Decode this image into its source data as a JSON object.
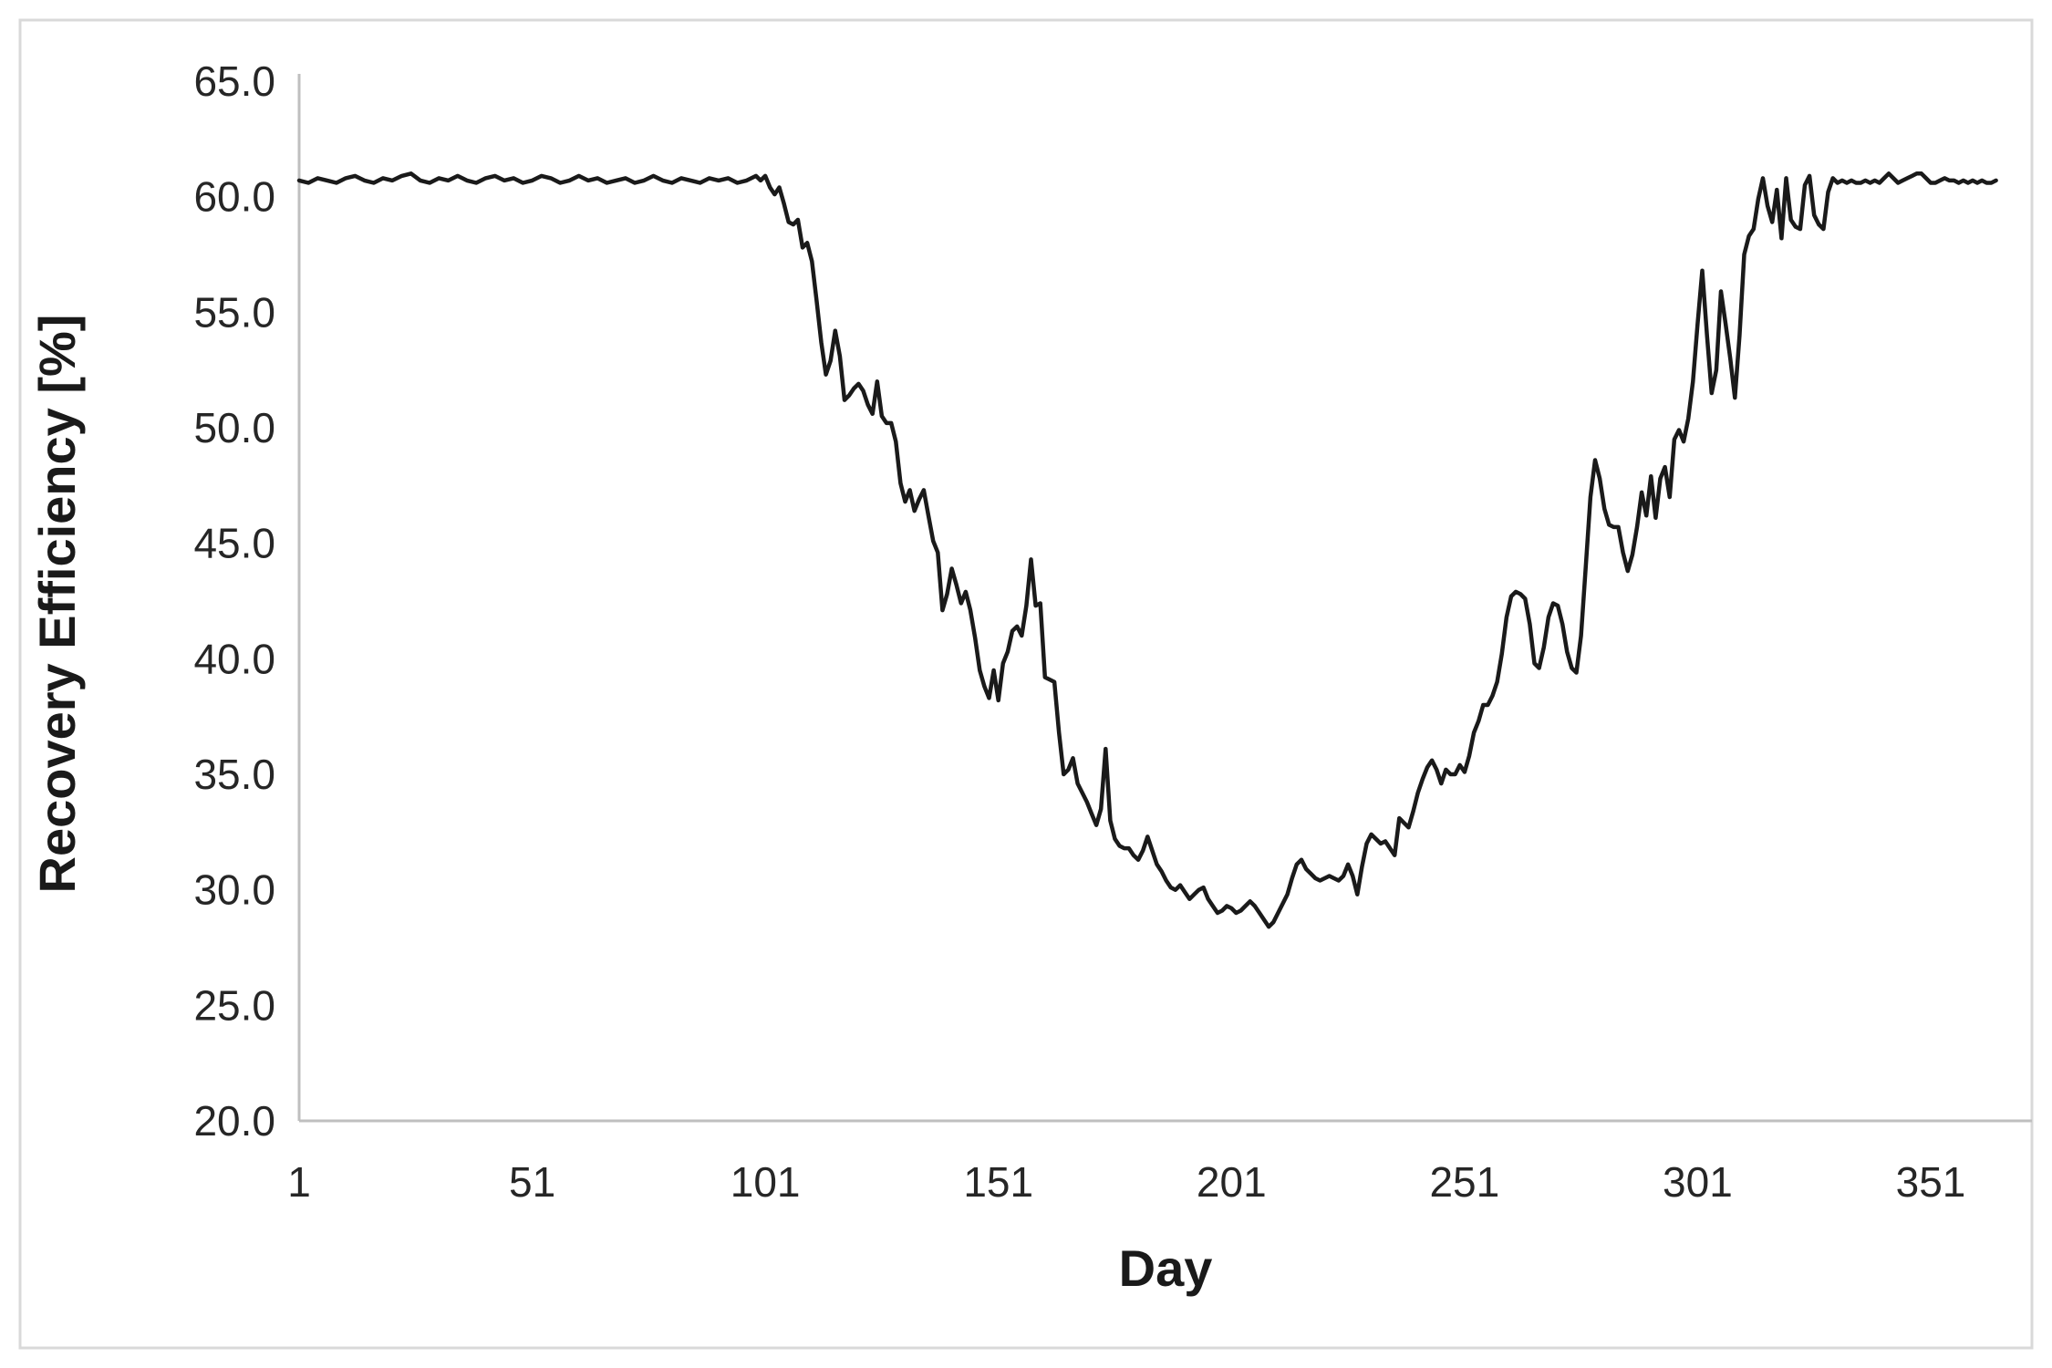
{
  "chart_data": {
    "type": "line",
    "title": "",
    "xlabel": "Day",
    "ylabel": "Recovery Efficiency [%]",
    "xlim": [
      1,
      373
    ],
    "ylim": [
      20.0,
      65.0
    ],
    "grid": false,
    "legend_position": "none",
    "x_ticks": [
      "1",
      "51",
      "101",
      "151",
      "201",
      "251",
      "301",
      "351"
    ],
    "y_ticks": [
      "65.0",
      "60.0",
      "55.0",
      "50.0",
      "45.0",
      "40.0",
      "35.0",
      "30.0",
      "25.0",
      "20.0"
    ],
    "series": [
      {
        "name": "Recovery Efficiency",
        "color": "#1a1a1a",
        "points": [
          [
            1,
            60.7
          ],
          [
            3,
            60.6
          ],
          [
            5,
            60.8
          ],
          [
            7,
            60.7
          ],
          [
            9,
            60.6
          ],
          [
            11,
            60.8
          ],
          [
            13,
            60.9
          ],
          [
            15,
            60.7
          ],
          [
            17,
            60.6
          ],
          [
            19,
            60.8
          ],
          [
            21,
            60.7
          ],
          [
            23,
            60.9
          ],
          [
            25,
            61.0
          ],
          [
            27,
            60.7
          ],
          [
            29,
            60.6
          ],
          [
            31,
            60.8
          ],
          [
            33,
            60.7
          ],
          [
            35,
            60.9
          ],
          [
            37,
            60.7
          ],
          [
            39,
            60.6
          ],
          [
            41,
            60.8
          ],
          [
            43,
            60.9
          ],
          [
            45,
            60.7
          ],
          [
            47,
            60.8
          ],
          [
            49,
            60.6
          ],
          [
            51,
            60.7
          ],
          [
            53,
            60.9
          ],
          [
            55,
            60.8
          ],
          [
            57,
            60.6
          ],
          [
            59,
            60.7
          ],
          [
            61,
            60.9
          ],
          [
            63,
            60.7
          ],
          [
            65,
            60.8
          ],
          [
            67,
            60.6
          ],
          [
            69,
            60.7
          ],
          [
            71,
            60.8
          ],
          [
            73,
            60.6
          ],
          [
            75,
            60.7
          ],
          [
            77,
            60.9
          ],
          [
            79,
            60.7
          ],
          [
            81,
            60.6
          ],
          [
            83,
            60.8
          ],
          [
            85,
            60.7
          ],
          [
            87,
            60.6
          ],
          [
            89,
            60.8
          ],
          [
            91,
            60.7
          ],
          [
            93,
            60.8
          ],
          [
            95,
            60.6
          ],
          [
            97,
            60.7
          ],
          [
            99,
            60.9
          ],
          [
            100,
            60.7
          ],
          [
            101,
            60.9
          ],
          [
            102,
            60.4
          ],
          [
            103,
            60.1
          ],
          [
            104,
            60.4
          ],
          [
            105,
            59.7
          ],
          [
            106,
            58.9
          ],
          [
            107,
            58.8
          ],
          [
            108,
            59.0
          ],
          [
            109,
            57.8
          ],
          [
            110,
            58.0
          ],
          [
            111,
            57.2
          ],
          [
            112,
            55.5
          ],
          [
            113,
            53.7
          ],
          [
            114,
            52.3
          ],
          [
            115,
            52.9
          ],
          [
            116,
            54.2
          ],
          [
            117,
            53.1
          ],
          [
            118,
            51.2
          ],
          [
            119,
            51.4
          ],
          [
            120,
            51.7
          ],
          [
            121,
            51.9
          ],
          [
            122,
            51.6
          ],
          [
            123,
            51.0
          ],
          [
            124,
            50.6
          ],
          [
            125,
            52.0
          ],
          [
            126,
            50.5
          ],
          [
            127,
            50.2
          ],
          [
            128,
            50.2
          ],
          [
            129,
            49.4
          ],
          [
            130,
            47.6
          ],
          [
            131,
            46.8
          ],
          [
            132,
            47.3
          ],
          [
            133,
            46.4
          ],
          [
            134,
            46.9
          ],
          [
            135,
            47.3
          ],
          [
            136,
            46.2
          ],
          [
            137,
            45.1
          ],
          [
            138,
            44.6
          ],
          [
            139,
            42.1
          ],
          [
            140,
            42.8
          ],
          [
            141,
            43.9
          ],
          [
            142,
            43.2
          ],
          [
            143,
            42.4
          ],
          [
            144,
            42.9
          ],
          [
            145,
            42.1
          ],
          [
            146,
            40.9
          ],
          [
            147,
            39.5
          ],
          [
            148,
            38.8
          ],
          [
            149,
            38.3
          ],
          [
            150,
            39.5
          ],
          [
            151,
            38.2
          ],
          [
            152,
            39.8
          ],
          [
            153,
            40.3
          ],
          [
            154,
            41.2
          ],
          [
            155,
            41.4
          ],
          [
            156,
            41.0
          ],
          [
            157,
            42.3
          ],
          [
            158,
            44.3
          ],
          [
            159,
            42.3
          ],
          [
            160,
            42.4
          ],
          [
            161,
            39.2
          ],
          [
            162,
            39.1
          ],
          [
            163,
            39.0
          ],
          [
            164,
            36.8
          ],
          [
            165,
            35.0
          ],
          [
            166,
            35.2
          ],
          [
            167,
            35.7
          ],
          [
            168,
            34.6
          ],
          [
            169,
            34.2
          ],
          [
            170,
            33.8
          ],
          [
            171,
            33.3
          ],
          [
            172,
            32.8
          ],
          [
            173,
            33.5
          ],
          [
            174,
            36.1
          ],
          [
            175,
            33.0
          ],
          [
            176,
            32.2
          ],
          [
            177,
            31.9
          ],
          [
            178,
            31.8
          ],
          [
            179,
            31.8
          ],
          [
            180,
            31.5
          ],
          [
            181,
            31.3
          ],
          [
            182,
            31.7
          ],
          [
            183,
            32.3
          ],
          [
            184,
            31.7
          ],
          [
            185,
            31.1
          ],
          [
            186,
            30.8
          ],
          [
            187,
            30.4
          ],
          [
            188,
            30.1
          ],
          [
            189,
            30.0
          ],
          [
            190,
            30.2
          ],
          [
            191,
            29.9
          ],
          [
            192,
            29.6
          ],
          [
            193,
            29.8
          ],
          [
            194,
            30.0
          ],
          [
            195,
            30.1
          ],
          [
            196,
            29.6
          ],
          [
            197,
            29.3
          ],
          [
            198,
            29.0
          ],
          [
            199,
            29.1
          ],
          [
            200,
            29.3
          ],
          [
            201,
            29.2
          ],
          [
            202,
            29.0
          ],
          [
            203,
            29.1
          ],
          [
            204,
            29.3
          ],
          [
            205,
            29.5
          ],
          [
            206,
            29.3
          ],
          [
            207,
            29.0
          ],
          [
            208,
            28.7
          ],
          [
            209,
            28.4
          ],
          [
            210,
            28.6
          ],
          [
            211,
            29.0
          ],
          [
            212,
            29.4
          ],
          [
            213,
            29.8
          ],
          [
            214,
            30.5
          ],
          [
            215,
            31.1
          ],
          [
            216,
            31.3
          ],
          [
            217,
            30.9
          ],
          [
            218,
            30.7
          ],
          [
            219,
            30.5
          ],
          [
            220,
            30.4
          ],
          [
            221,
            30.5
          ],
          [
            222,
            30.6
          ],
          [
            223,
            30.5
          ],
          [
            224,
            30.4
          ],
          [
            225,
            30.6
          ],
          [
            226,
            31.1
          ],
          [
            227,
            30.6
          ],
          [
            228,
            29.8
          ],
          [
            229,
            31.0
          ],
          [
            230,
            32.0
          ],
          [
            231,
            32.4
          ],
          [
            232,
            32.2
          ],
          [
            233,
            32.0
          ],
          [
            234,
            32.1
          ],
          [
            235,
            31.8
          ],
          [
            236,
            31.5
          ],
          [
            237,
            33.1
          ],
          [
            238,
            32.9
          ],
          [
            239,
            32.7
          ],
          [
            240,
            33.4
          ],
          [
            241,
            34.2
          ],
          [
            242,
            34.8
          ],
          [
            243,
            35.3
          ],
          [
            244,
            35.6
          ],
          [
            245,
            35.2
          ],
          [
            246,
            34.6
          ],
          [
            247,
            35.2
          ],
          [
            248,
            35.0
          ],
          [
            249,
            35.0
          ],
          [
            250,
            35.4
          ],
          [
            251,
            35.1
          ],
          [
            252,
            35.8
          ],
          [
            253,
            36.8
          ],
          [
            254,
            37.3
          ],
          [
            255,
            38.0
          ],
          [
            256,
            38.0
          ],
          [
            257,
            38.4
          ],
          [
            258,
            39.0
          ],
          [
            259,
            40.2
          ],
          [
            260,
            41.8
          ],
          [
            261,
            42.7
          ],
          [
            262,
            42.9
          ],
          [
            263,
            42.8
          ],
          [
            264,
            42.6
          ],
          [
            265,
            41.5
          ],
          [
            266,
            39.8
          ],
          [
            267,
            39.6
          ],
          [
            268,
            40.5
          ],
          [
            269,
            41.8
          ],
          [
            270,
            42.4
          ],
          [
            271,
            42.3
          ],
          [
            272,
            41.5
          ],
          [
            273,
            40.3
          ],
          [
            274,
            39.6
          ],
          [
            275,
            39.4
          ],
          [
            276,
            41.0
          ],
          [
            277,
            44.0
          ],
          [
            278,
            47.0
          ],
          [
            279,
            48.6
          ],
          [
            280,
            47.8
          ],
          [
            281,
            46.5
          ],
          [
            282,
            45.8
          ],
          [
            283,
            45.7
          ],
          [
            284,
            45.7
          ],
          [
            285,
            44.6
          ],
          [
            286,
            43.8
          ],
          [
            287,
            44.5
          ],
          [
            288,
            45.7
          ],
          [
            289,
            47.2
          ],
          [
            290,
            46.2
          ],
          [
            291,
            47.9
          ],
          [
            292,
            46.1
          ],
          [
            293,
            47.8
          ],
          [
            294,
            48.3
          ],
          [
            295,
            47.0
          ],
          [
            296,
            49.5
          ],
          [
            297,
            49.9
          ],
          [
            298,
            49.4
          ],
          [
            299,
            50.4
          ],
          [
            300,
            52.0
          ],
          [
            301,
            54.5
          ],
          [
            302,
            56.8
          ],
          [
            303,
            54.0
          ],
          [
            304,
            51.5
          ],
          [
            305,
            52.5
          ],
          [
            306,
            55.9
          ],
          [
            307,
            54.5
          ],
          [
            308,
            53.0
          ],
          [
            309,
            51.3
          ],
          [
            310,
            54.0
          ],
          [
            311,
            57.5
          ],
          [
            312,
            58.3
          ],
          [
            313,
            58.6
          ],
          [
            314,
            59.9
          ],
          [
            315,
            60.8
          ],
          [
            316,
            59.6
          ],
          [
            317,
            58.9
          ],
          [
            318,
            60.3
          ],
          [
            319,
            58.2
          ],
          [
            320,
            60.8
          ],
          [
            321,
            59.0
          ],
          [
            322,
            58.7
          ],
          [
            323,
            58.6
          ],
          [
            324,
            60.5
          ],
          [
            325,
            60.9
          ],
          [
            326,
            59.2
          ],
          [
            327,
            58.8
          ],
          [
            328,
            58.6
          ],
          [
            329,
            60.2
          ],
          [
            330,
            60.8
          ],
          [
            331,
            60.6
          ],
          [
            332,
            60.7
          ],
          [
            333,
            60.6
          ],
          [
            334,
            60.7
          ],
          [
            335,
            60.6
          ],
          [
            336,
            60.6
          ],
          [
            337,
            60.7
          ],
          [
            338,
            60.6
          ],
          [
            339,
            60.7
          ],
          [
            340,
            60.6
          ],
          [
            341,
            60.8
          ],
          [
            342,
            61.0
          ],
          [
            343,
            60.8
          ],
          [
            344,
            60.6
          ],
          [
            345,
            60.7
          ],
          [
            346,
            60.8
          ],
          [
            347,
            60.9
          ],
          [
            348,
            61.0
          ],
          [
            349,
            61.0
          ],
          [
            350,
            60.8
          ],
          [
            351,
            60.6
          ],
          [
            352,
            60.6
          ],
          [
            353,
            60.7
          ],
          [
            354,
            60.8
          ],
          [
            355,
            60.7
          ],
          [
            356,
            60.7
          ],
          [
            357,
            60.6
          ],
          [
            358,
            60.7
          ],
          [
            359,
            60.6
          ],
          [
            360,
            60.7
          ],
          [
            361,
            60.6
          ],
          [
            362,
            60.7
          ],
          [
            363,
            60.6
          ],
          [
            364,
            60.6
          ],
          [
            365,
            60.7
          ]
        ]
      }
    ]
  },
  "colors": {
    "background": "#ffffff",
    "series_line": "#1a1a1a",
    "axis_line": "#bfbfbf",
    "frame_border": "#d9d9d9",
    "tick_label": "#262626",
    "axis_title": "#1a1a1a"
  }
}
